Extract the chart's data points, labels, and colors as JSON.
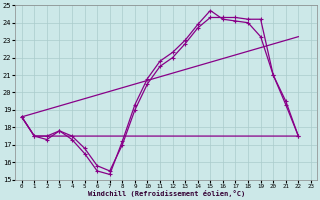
{
  "xlabel": "Windchill (Refroidissement éolien,°C)",
  "background_color": "#cce8e8",
  "grid_color": "#aacccc",
  "line_color": "#880088",
  "xlim": [
    -0.5,
    23.5
  ],
  "ylim": [
    15,
    25
  ],
  "yticks": [
    15,
    16,
    17,
    18,
    19,
    20,
    21,
    22,
    23,
    24,
    25
  ],
  "xticks": [
    0,
    1,
    2,
    3,
    4,
    5,
    6,
    7,
    8,
    9,
    10,
    11,
    12,
    13,
    14,
    15,
    16,
    17,
    18,
    19,
    20,
    21,
    22,
    23
  ],
  "series1_x": [
    0,
    1,
    2,
    3,
    4,
    5,
    6,
    7,
    8,
    9,
    10,
    11,
    12,
    13,
    14,
    15,
    16,
    17,
    18,
    19,
    20,
    21,
    22
  ],
  "series1_y": [
    18.6,
    17.5,
    17.3,
    17.8,
    17.3,
    16.5,
    15.5,
    15.3,
    17.2,
    19.3,
    20.8,
    21.8,
    22.3,
    23.0,
    23.9,
    24.7,
    24.2,
    24.1,
    24.0,
    23.2,
    21.0,
    19.3,
    17.5
  ],
  "series2_x": [
    0,
    1,
    2,
    3,
    4,
    5,
    6,
    7,
    8,
    9,
    10,
    11,
    12,
    13,
    14,
    15,
    16,
    17,
    18,
    19,
    20,
    21,
    22
  ],
  "series2_y": [
    18.6,
    17.5,
    17.5,
    17.8,
    17.5,
    16.8,
    15.8,
    15.5,
    17.0,
    19.0,
    20.5,
    21.5,
    22.0,
    22.8,
    23.7,
    24.3,
    24.3,
    24.3,
    24.2,
    24.2,
    21.0,
    19.5,
    17.5
  ],
  "series3_x": [
    0,
    22
  ],
  "series3_y": [
    18.6,
    23.2
  ],
  "series4_x": [
    0,
    1,
    22
  ],
  "series4_y": [
    18.6,
    17.5,
    17.5
  ]
}
